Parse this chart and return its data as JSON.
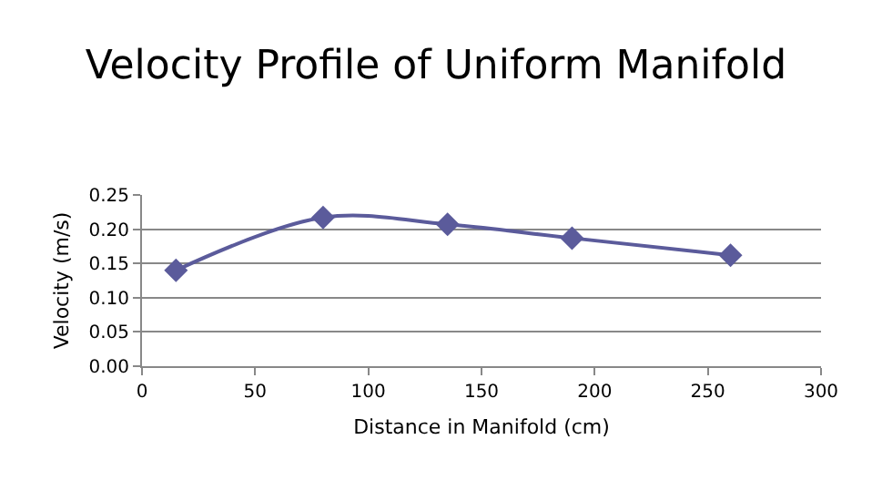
{
  "chart_data": {
    "type": "line",
    "title": "Velocity Profile of Uniform Manifold",
    "xlabel": "Distance in Manifold (cm)",
    "ylabel": "Velocity (m/s)",
    "x": [
      15,
      80,
      135,
      190,
      260
    ],
    "series": [
      {
        "color": "#5b5b9b",
        "values": [
          0.14,
          0.217,
          0.207,
          0.187,
          0.162
        ]
      }
    ],
    "xlim": [
      0,
      300
    ],
    "xticks": [
      0,
      50,
      100,
      150,
      200,
      250,
      300
    ],
    "ylim": [
      0,
      0.25
    ],
    "yticks": [
      {
        "value": 0,
        "label": "0.00"
      },
      {
        "value": 0.05,
        "label": "0.05"
      },
      {
        "value": 0.1,
        "label": "0.10"
      },
      {
        "value": 0.15,
        "label": "0.15"
      },
      {
        "value": 0.2,
        "label": "0.20"
      },
      {
        "value": 0.25,
        "label": "0.25"
      }
    ],
    "grid": "y",
    "marker": "diamond",
    "line_style": "solid"
  }
}
